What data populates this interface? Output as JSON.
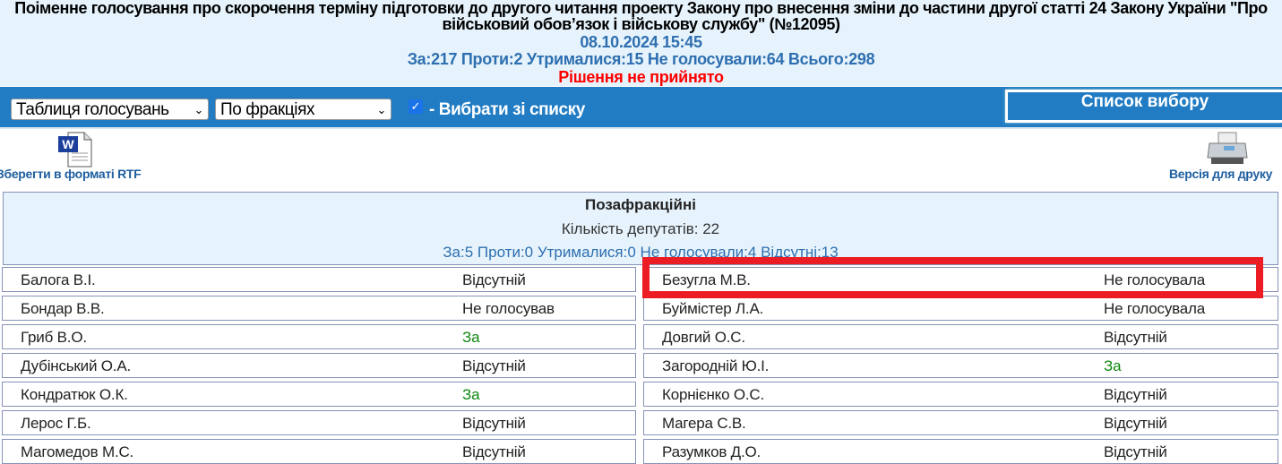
{
  "header": {
    "title": "Поіменне голосування про скорочення терміну підготовки до другого читання проекту Закону про внесення зміни до частини другої статті 24 Закону України \"Про військовий обов’язок і військову службу\" (№12095)",
    "datetime": "08.10.2024 15:45",
    "totals": "За:217 Проти:2 Утрималися:15 Не голосували:64 Всього:298",
    "decision": "Рішення не прийнято"
  },
  "toolbar": {
    "view_select": "Таблиця голосувань",
    "group_select": "По фракціях",
    "checkbox_checked": true,
    "checkbox_label": "- Вибрати зі списку",
    "list_button": "Список вибору"
  },
  "actions": {
    "save_rtf": "Зберегти в форматі RTF",
    "print_version": "Версія для друку"
  },
  "faction": {
    "name": "Позафракційні",
    "count": "Кількість депутатів: 22",
    "summary": "За:5 Проти:0 Утрималися:0 Не голосували:4 Відсутні:13"
  },
  "deputies_left": [
    {
      "name": "Балога В.І.",
      "vote": "Відсутній"
    },
    {
      "name": "Бондар В.В.",
      "vote": "Не голосував"
    },
    {
      "name": "Гриб В.О.",
      "vote": "За"
    },
    {
      "name": "Дубінський О.А.",
      "vote": "Відсутній"
    },
    {
      "name": "Кондратюк О.К.",
      "vote": "За"
    },
    {
      "name": "Лерос Г.Б.",
      "vote": "Відсутній"
    },
    {
      "name": "Магомедов М.С.",
      "vote": "Відсутній"
    }
  ],
  "deputies_right": [
    {
      "name": "Безугла М.В.",
      "vote": "Не голосувала"
    },
    {
      "name": "Буймістер Л.А.",
      "vote": "Не голосувала"
    },
    {
      "name": "Довгий О.С.",
      "vote": "Відсутній"
    },
    {
      "name": "Загородній Ю.І.",
      "vote": "За"
    },
    {
      "name": "Корнієнко О.С.",
      "vote": "Відсутній"
    },
    {
      "name": "Магера С.В.",
      "vote": "Відсутній"
    },
    {
      "name": "Разумков Д.О.",
      "vote": "Відсутній"
    }
  ],
  "colors": {
    "header_bg": "#e6f3fc",
    "bar": "#217cc4",
    "vote_for": "#118811",
    "decision": "#ff0000",
    "highlight": "#ec1c24"
  }
}
